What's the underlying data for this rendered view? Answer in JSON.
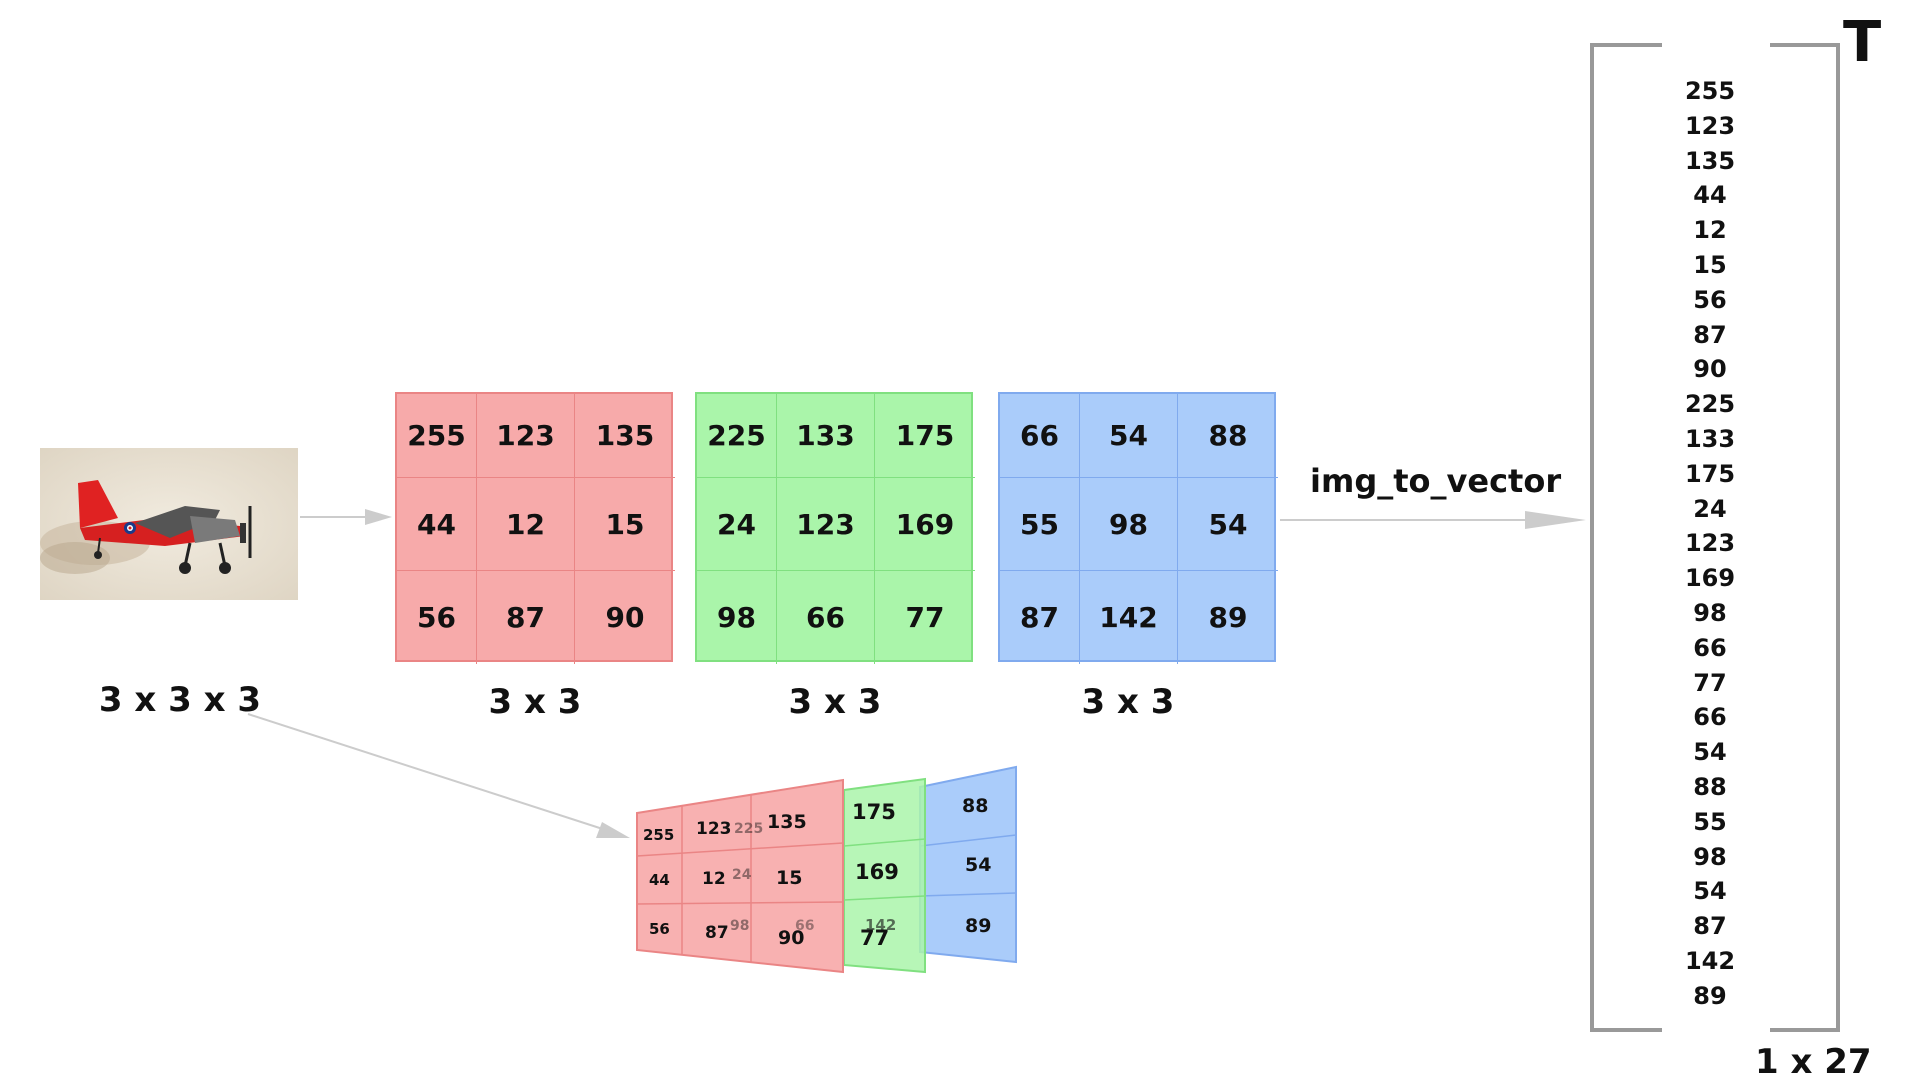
{
  "image": {
    "alt": "red propeller airplane photo",
    "dim_label": "3 x 3 x 3"
  },
  "channels": [
    {
      "color": "red",
      "values": [
        255,
        123,
        135,
        44,
        12,
        15,
        56,
        87,
        90
      ],
      "dim_label": "3 x 3"
    },
    {
      "color": "green",
      "values": [
        225,
        133,
        175,
        24,
        123,
        169,
        98,
        66,
        77
      ],
      "dim_label": "3 x 3"
    },
    {
      "color": "blue",
      "values": [
        66,
        54,
        88,
        55,
        98,
        54,
        87,
        142,
        89
      ],
      "dim_label": "3 x 3"
    }
  ],
  "function_label": "img_to_vector",
  "vector": {
    "values": [
      255,
      123,
      135,
      44,
      12,
      15,
      56,
      87,
      90,
      225,
      133,
      175,
      24,
      123,
      169,
      98,
      66,
      77,
      66,
      54,
      88,
      55,
      98,
      54,
      87,
      142,
      89
    ],
    "transpose_symbol": "T",
    "dim_label": "1 x 27"
  },
  "stacked_view": {
    "red_values": [
      255,
      123,
      135,
      44,
      12,
      15,
      56,
      87,
      90
    ],
    "green_visible": [
      175,
      169,
      77
    ],
    "green_faint": [
      225,
      24,
      98,
      66,
      142
    ],
    "blue_visible": [
      88,
      54,
      89
    ]
  },
  "colors": {
    "red_fill": "#f7aaaa",
    "green_fill": "#aaf5aa",
    "blue_fill": "#aaccfa",
    "arrow": "#cccccc",
    "bracket": "#999999"
  }
}
